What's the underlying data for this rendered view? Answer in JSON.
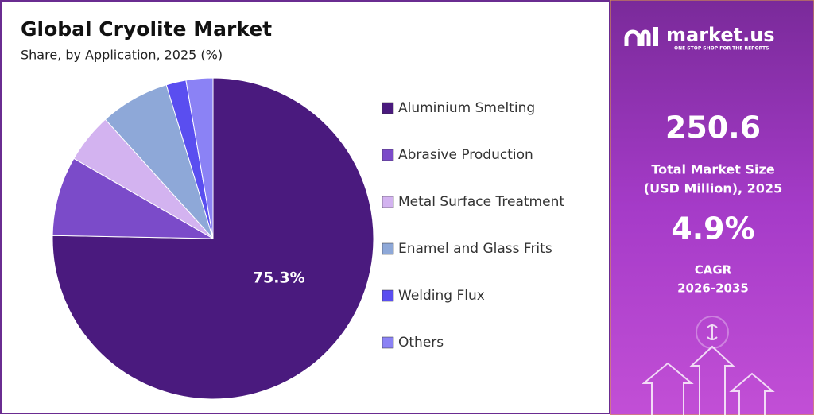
{
  "chart_data": {
    "type": "pie",
    "title": "Global Cryolite Market",
    "subtitle": "Share, by Application, 2025 (%)",
    "categories": [
      "Aluminium Smelting",
      "Abrasive Production",
      "Metal Surface Treatment",
      "Enamel and Glass Frits",
      "Welding Flux",
      "Others"
    ],
    "values": [
      75.3,
      8,
      5,
      7,
      2,
      2.7
    ],
    "value_labels": [
      "75.3%",
      null,
      null,
      null,
      null,
      null
    ],
    "colors": [
      "#4a1a7e",
      "#7b4bc9",
      "#d3b3f0",
      "#8ea8d8",
      "#5a4ef0",
      "#8b82f5"
    ],
    "legend": "right"
  },
  "panel": {
    "brand": "market.us",
    "tagline": "ONE STOP SHOP FOR THE REPORTS",
    "market_size": "250.6",
    "market_size_label": [
      "Total Market Size",
      "(USD Million), 2025"
    ],
    "cagr": "4.9%",
    "cagr_label": [
      "CAGR",
      "2026-2035"
    ]
  }
}
